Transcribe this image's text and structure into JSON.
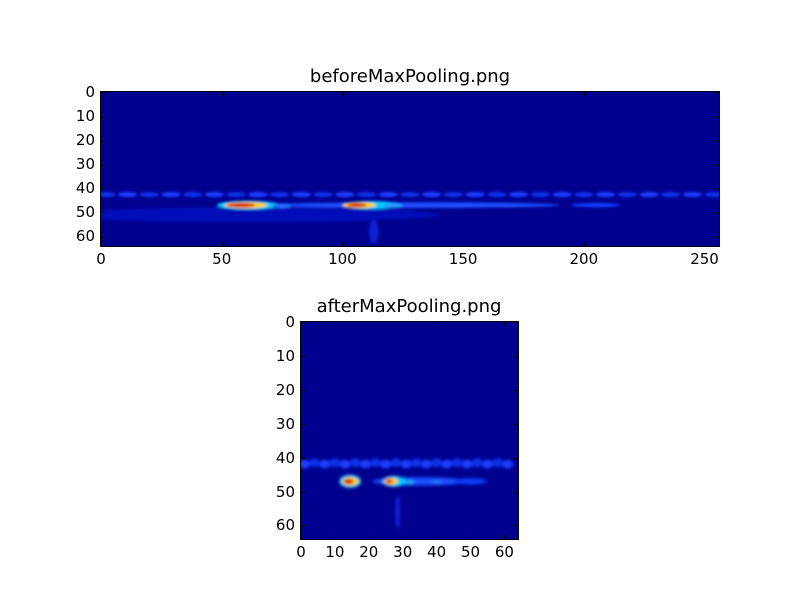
{
  "chart_data": [
    {
      "type": "heatmap",
      "title": "beforeMaxPooling.png",
      "colormap": "jet",
      "xlim": [
        0,
        256
      ],
      "ylim": [
        64,
        0
      ],
      "xticks": [
        "0",
        "50",
        "100",
        "150",
        "200",
        "250"
      ],
      "yticks": [
        "0",
        "10",
        "20",
        "30",
        "40",
        "50",
        "60"
      ]
    },
    {
      "type": "heatmap",
      "title": "afterMaxPooling.png",
      "colormap": "jet",
      "xlim": [
        0,
        64
      ],
      "ylim": [
        64,
        0
      ],
      "xticks": [
        "0",
        "10",
        "20",
        "30",
        "40",
        "50",
        "60"
      ],
      "yticks": [
        "0",
        "10",
        "20",
        "30",
        "40",
        "50",
        "60"
      ]
    }
  ]
}
